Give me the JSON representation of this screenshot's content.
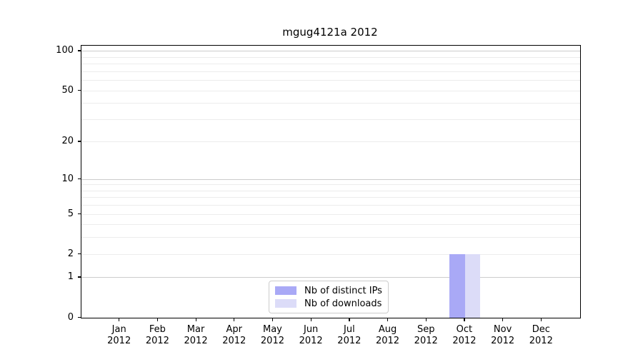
{
  "chart_data": {
    "type": "bar",
    "title": "mgug4121a 2012",
    "categories": [
      "Jan",
      "Feb",
      "Mar",
      "Apr",
      "May",
      "Jun",
      "Jul",
      "Aug",
      "Sep",
      "Oct",
      "Nov",
      "Dec"
    ],
    "year_label": "2012",
    "series": [
      {
        "name": "Nb of distinct IPs",
        "color": "#a9a9f6",
        "values": [
          0,
          0,
          0,
          0,
          0,
          0,
          0,
          0,
          0,
          2,
          0,
          0
        ]
      },
      {
        "name": "Nb of downloads",
        "color": "#dcdcf8",
        "values": [
          0,
          0,
          0,
          0,
          0,
          0,
          0,
          0,
          0,
          2,
          0,
          0
        ]
      }
    ],
    "xlabel": "",
    "ylabel": "",
    "y_axis": {
      "scale": "log1p",
      "tick_values": [
        0,
        1,
        2,
        5,
        10,
        20,
        50,
        100
      ],
      "tick_labels": [
        "0",
        "1",
        "2",
        "5",
        "10",
        "20",
        "50",
        "100"
      ],
      "ylim": [
        0,
        110.4
      ],
      "gridline_values": [
        1,
        2,
        3,
        4,
        5,
        6,
        7,
        8,
        9,
        10,
        20,
        30,
        40,
        50,
        60,
        70,
        80,
        90,
        100
      ],
      "major_gridline_values": [
        1,
        10,
        100
      ]
    },
    "grid_on": true,
    "legend_position": "lower center",
    "colors": {
      "minor_grid": "#ececec",
      "major_grid": "#cccccc",
      "spine": "#000000",
      "legend_border": "#cccccc",
      "text": "#000000"
    }
  }
}
